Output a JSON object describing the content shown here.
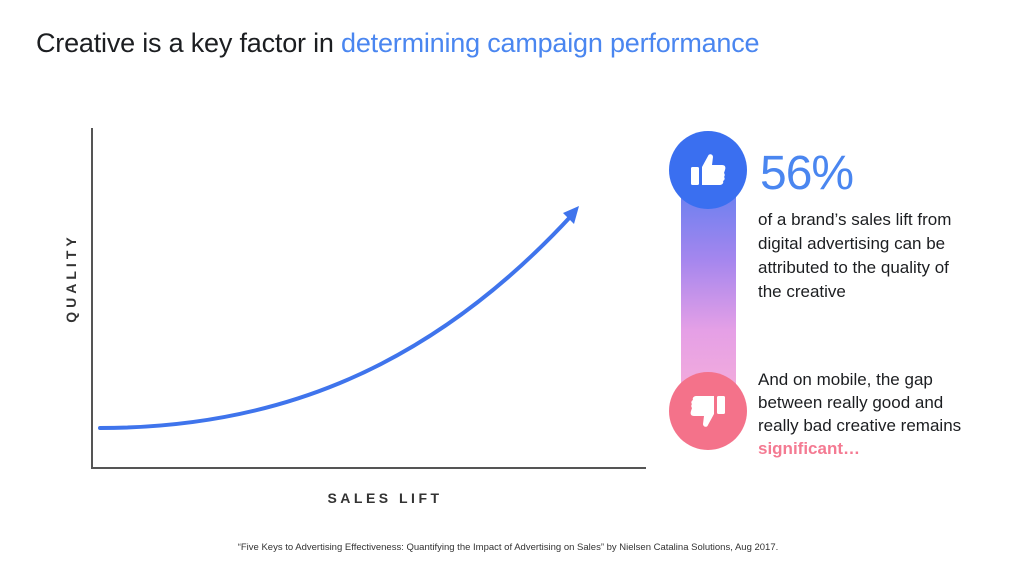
{
  "title": {
    "prefix": "Creative is a key factor in ",
    "accent": "determining campaign performance"
  },
  "chart": {
    "ylabel": "QUALITY",
    "xlabel": "SALES LIFT"
  },
  "stat": {
    "value": "56%",
    "description": "of a brand’s sales lift from digital advertising can be attributed to the quality of the creative"
  },
  "mobile": {
    "text": "And on mobile, the gap between really good and really bad creative remains ",
    "highlight": "significant…"
  },
  "footnote": "“Five Keys to Advertising Effectiveness: Quantifying the Impact of Advertising on Sales” by Nielsen Catalina Solutions, Aug 2017.",
  "icons": {
    "up": "thumbs-up-icon",
    "down": "thumbs-down-icon"
  },
  "colors": {
    "accent_blue": "#4a86f0",
    "up_circle": "#3a6ff0",
    "down_circle": "#f4728a",
    "highlight_pink": "#f47a92"
  }
}
